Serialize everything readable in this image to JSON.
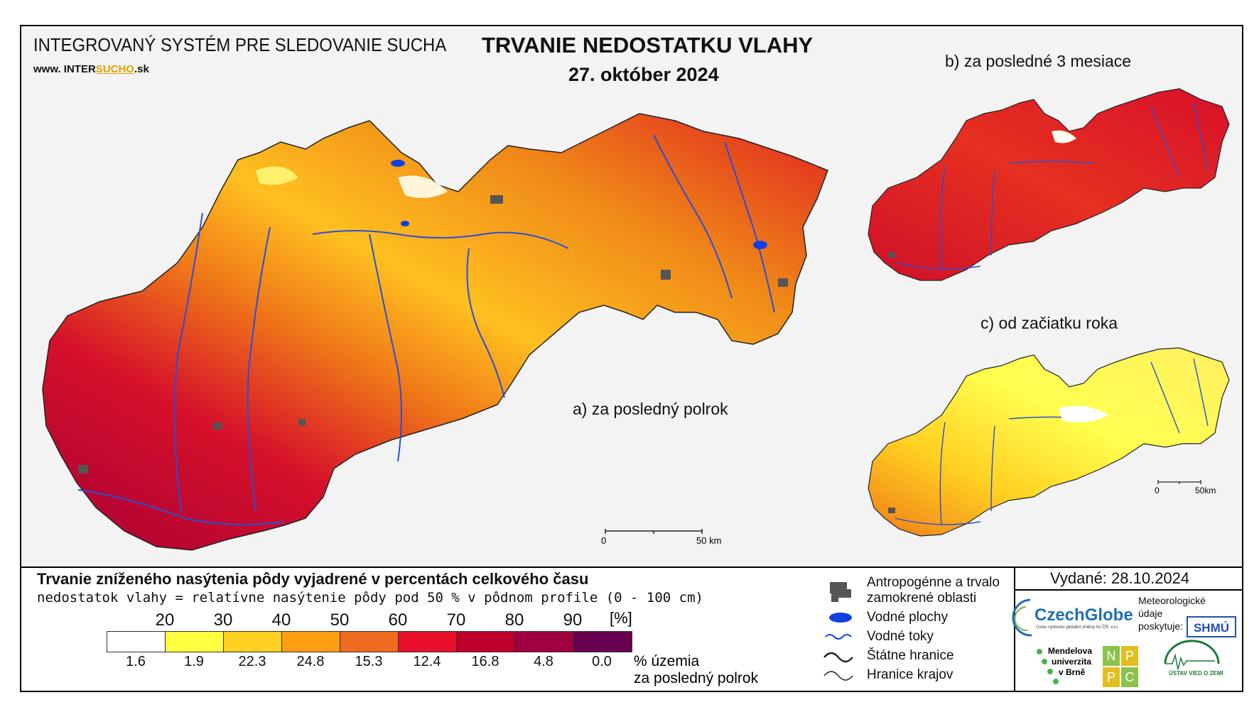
{
  "header": {
    "system_title": "INTEGROVANÝ SYSTÉM PRE SLEDOVANIE SUCHA",
    "www_prefix": "www.",
    "www_site_a": "INTER",
    "www_site_b": "SUCHO",
    "www_suffix": ".sk",
    "main_title": "TRVANIE NEDOSTATKU VLAHY",
    "date": "27. október 2024"
  },
  "maps": {
    "main_label": "a) za posledný polrok",
    "b_label": "b) za posledné 3 mesiace",
    "c_label": "c) od začiatku roka",
    "main_scale_0": "0",
    "main_scale_50": "50 km",
    "small_scale_0": "0",
    "small_scale_50": "50km"
  },
  "legend": {
    "title": "Trvanie zníženého nasýtenia pôdy vyjadrené v percentách celkového času",
    "subtitle": "nedostatok vlahy = relatívne nasýtenie pôdy pod 50 % v pôdnom profile (0 - 100 cm)",
    "unit": "[%]",
    "ticks": [
      "20",
      "30",
      "40",
      "50",
      "60",
      "70",
      "80",
      "90"
    ],
    "bin_colors": [
      "#ffffff",
      "#ffff40",
      "#ffd020",
      "#ff9e10",
      "#f06a20",
      "#e8102a",
      "#c0002a",
      "#a00040",
      "#6a0050"
    ],
    "area_percent": [
      "1.6",
      "1.9",
      "22.3",
      "24.8",
      "15.3",
      "12.4",
      "16.8",
      "4.8",
      "0.0"
    ],
    "area_label_1": "% územia",
    "area_label_2": "za posledný polrok"
  },
  "symbols": {
    "anthro_1": "Antropogénne a trvalo",
    "anthro_2": "zamokrené oblasti",
    "water_bodies": "Vodné plochy",
    "rivers": "Vodné toky",
    "state_border": "Štátne hranice",
    "region_border": "Hranice krajov"
  },
  "credits": {
    "issued": "Vydané: 28.10.2024",
    "czechglobe": "CzechGlobe",
    "czechglobe_sub": "Ústav výzkumu globální změny AV ČR, v.v.i.",
    "meteo_1": "Meteorologické",
    "meteo_2": "údaje",
    "meteo_3": "poskytuje:",
    "shmu": "SHMÚ",
    "mendel_1": "Mendelova",
    "mendel_2": "univerzita",
    "mendel_3": "v Brně",
    "nppc_n": "N",
    "nppc_p1": "P",
    "nppc_p2": "P",
    "nppc_c": "C",
    "uvz": "ÚSTAV VIED O ZEMI"
  },
  "colors": {
    "frame_bg": "#f3f3f3",
    "river": "#2a4ed8",
    "water": "#1040e0",
    "anthro": "#555555",
    "czechglobe": "#1f6fb5"
  }
}
